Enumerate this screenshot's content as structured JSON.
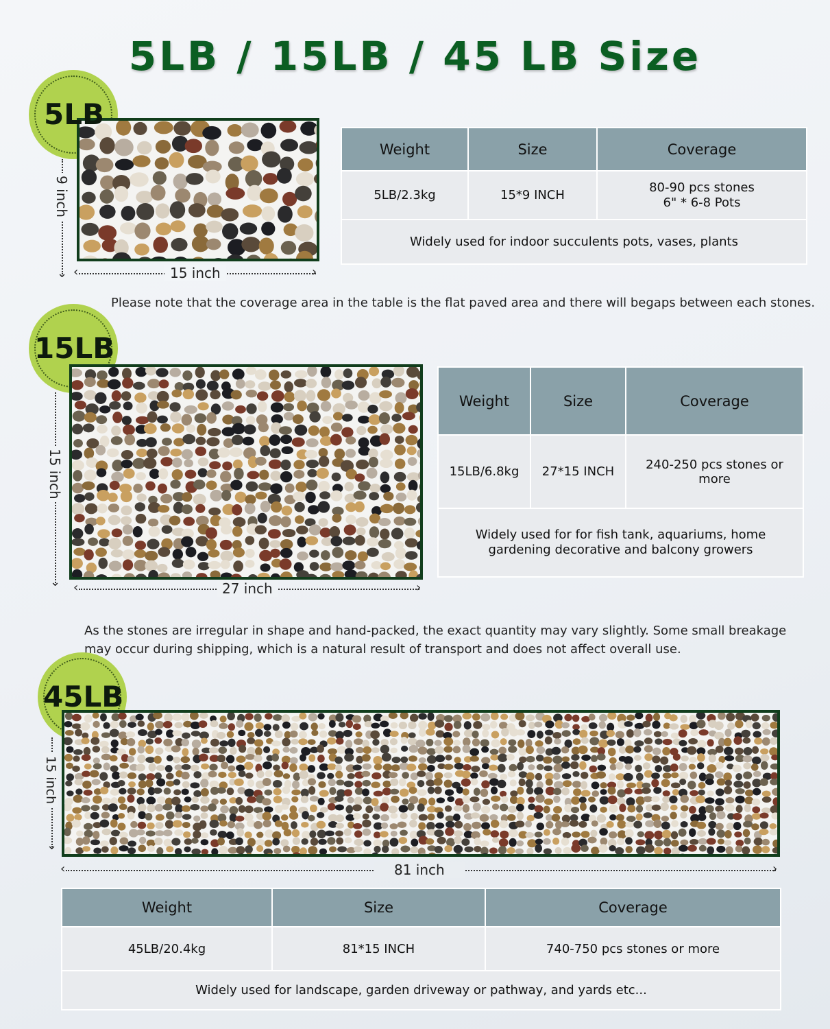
{
  "title": "5LB / 15LB / 45 LB Size",
  "colors": {
    "title_green": "#0b5e22",
    "badge_green": "#b0d24e",
    "frame_green": "#113d1c",
    "table_header": "#8aa1a9",
    "table_body": "#e9ebee"
  },
  "sections": [
    {
      "badge": "5LB",
      "height_label": "9 inch",
      "width_label": "15 inch",
      "table": {
        "headers": [
          "Weight",
          "Size",
          "Coverage"
        ],
        "row": [
          "5LB/2.3kg",
          "15*9 INCH",
          "80-90 pcs stones\n6\" * 6-8 Pots"
        ],
        "usage": "Widely used for indoor succulents pots, vases, plants"
      },
      "note": "Please note that the coverage area in the table is the flat paved area and there will begaps between each stones."
    },
    {
      "badge": "15LB",
      "height_label": "15 inch",
      "width_label": "27 inch",
      "table": {
        "headers": [
          "Weight",
          "Size",
          "Coverage"
        ],
        "row": [
          "15LB/6.8kg",
          "27*15 INCH",
          "240-250 pcs stones or more"
        ],
        "usage": "Widely used for for fish tank, aquariums, home gardening decorative and balcony growers"
      },
      "note": "As the stones are irregular in shape and hand-packed, the exact quantity may vary slightly. Some small breakage may occur during shipping, which is a natural result of transport and does not affect overall use."
    },
    {
      "badge": "45LB",
      "height_label": "15 inch",
      "width_label": "81 inch",
      "table": {
        "headers": [
          "Weight",
          "Size",
          "Coverage"
        ],
        "row": [
          "45LB/20.4kg",
          "81*15 INCH",
          "740-750 pcs stones or more"
        ],
        "usage": "Widely used for landscape, garden driveway or pathway, and yards etc..."
      }
    }
  ]
}
